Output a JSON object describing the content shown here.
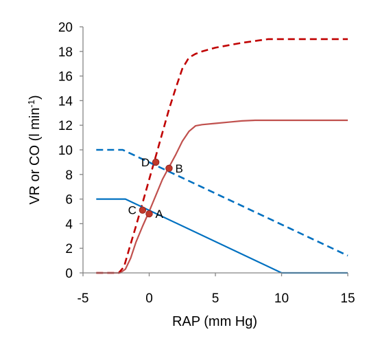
{
  "chart_data": {
    "type": "line",
    "xlabel": "RAP (mm Hg)",
    "ylabel": "VR or CO (l min",
    "ylabel_sup": "-1",
    "ylabel_close": ")",
    "xlim": [
      -5,
      15
    ],
    "ylim": [
      0,
      20
    ],
    "xticks": [
      -5,
      0,
      5,
      10,
      15
    ],
    "yticks": [
      0,
      2,
      4,
      6,
      8,
      10,
      12,
      14,
      16,
      18,
      20
    ],
    "grid": false,
    "series": [
      {
        "style": "solid",
        "color": "#c0504d",
        "x": [
          -4,
          -2.2,
          -1.8,
          -1.4,
          -1,
          -0.5,
          0,
          0.5,
          1,
          1.5,
          2,
          2.5,
          3,
          3.5,
          4,
          5,
          6,
          7,
          8,
          9,
          10,
          11,
          12,
          13,
          14,
          15
        ],
        "y": [
          0,
          0,
          0.3,
          1.2,
          2.5,
          3.8,
          5.0,
          6.3,
          7.6,
          8.6,
          9.6,
          10.7,
          11.5,
          11.95,
          12.05,
          12.15,
          12.25,
          12.35,
          12.4,
          12.4,
          12.4,
          12.4,
          12.4,
          12.4,
          12.4,
          12.4
        ]
      },
      {
        "style": "dashed",
        "color": "#c00000",
        "x": [
          -4,
          -2.3,
          -1.9,
          -1.5,
          -1,
          -0.5,
          0,
          0.5,
          1,
          1.5,
          2,
          2.5,
          3,
          3.5,
          4,
          5,
          6,
          7,
          8,
          9,
          10,
          11,
          12,
          13,
          14,
          15
        ],
        "y": [
          0,
          0,
          0.5,
          2.0,
          3.8,
          5.7,
          7.6,
          9.5,
          11.4,
          13.3,
          15.0,
          16.6,
          17.5,
          17.8,
          18.0,
          18.3,
          18.5,
          18.7,
          18.85,
          19.0,
          19.0,
          19.0,
          19.0,
          19.0,
          19.0,
          19.0
        ]
      },
      {
        "style": "solid",
        "color": "#0070c0",
        "x": [
          -4,
          -1.8,
          10,
          15
        ],
        "y": [
          6,
          6,
          0,
          0
        ]
      },
      {
        "style": "dashed",
        "color": "#0070c0",
        "x": [
          -4,
          -2,
          15
        ],
        "y": [
          10,
          10,
          1.4
        ]
      }
    ],
    "points": [
      {
        "label": "A",
        "x": 0,
        "y": 4.8,
        "label_side": "right"
      },
      {
        "label": "B",
        "x": 1.5,
        "y": 8.5,
        "label_side": "right"
      },
      {
        "label": "C",
        "x": -0.5,
        "y": 5.1,
        "label_side": "left"
      },
      {
        "label": "D",
        "x": 0.5,
        "y": 9.0,
        "label_side": "left"
      }
    ],
    "point_color": "#c0392b"
  }
}
